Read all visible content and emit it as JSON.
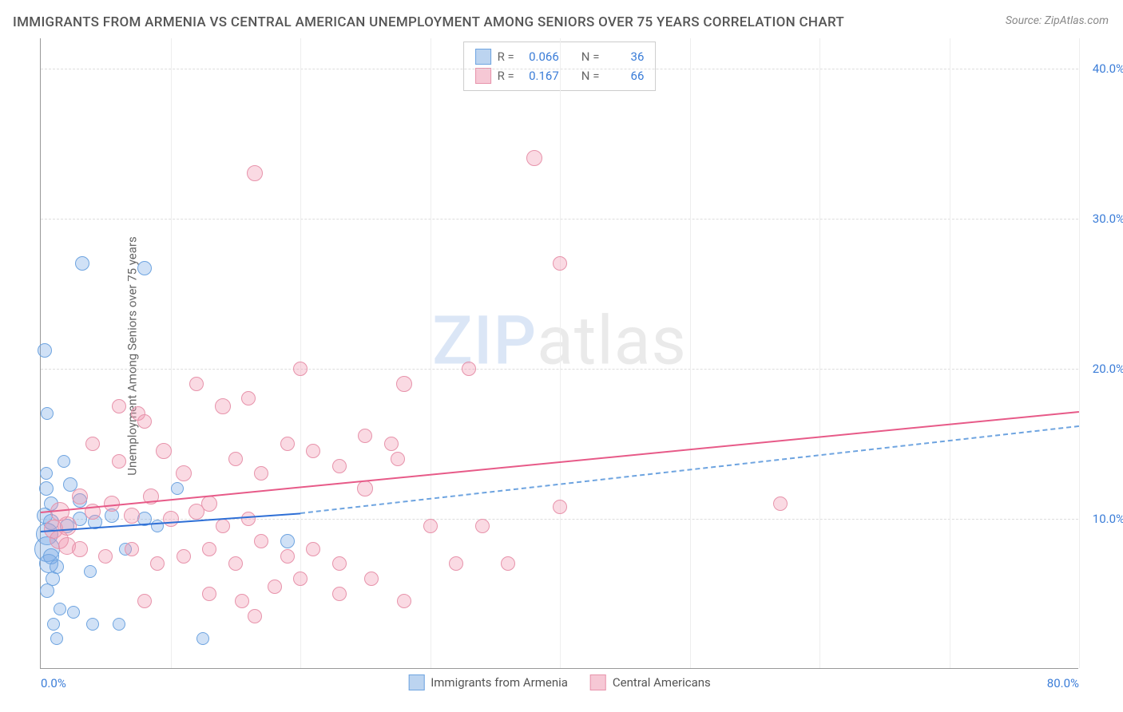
{
  "title": "IMMIGRANTS FROM ARMENIA VS CENTRAL AMERICAN UNEMPLOYMENT AMONG SENIORS OVER 75 YEARS CORRELATION CHART",
  "source": "Source: ZipAtlas.com",
  "ylabel": "Unemployment Among Seniors over 75 years",
  "watermark_a": "ZIP",
  "watermark_b": "atlas",
  "chart": {
    "type": "scatter",
    "xlim": [
      0,
      80
    ],
    "ylim": [
      0,
      42
    ],
    "xticks": [
      {
        "v": 0,
        "label": "0.0%"
      },
      {
        "v": 80,
        "label": "80.0%"
      }
    ],
    "xgrid": [
      10,
      20,
      30,
      40,
      50,
      60,
      70,
      80
    ],
    "yticks": [
      {
        "v": 10,
        "label": "10.0%"
      },
      {
        "v": 20,
        "label": "20.0%"
      },
      {
        "v": 30,
        "label": "30.0%"
      },
      {
        "v": 40,
        "label": "40.0%"
      }
    ],
    "background_color": "#ffffff",
    "grid_color_h": "#dddddd",
    "grid_color_v": "#eeeeee",
    "axis_color": "#999999",
    "tick_font_color": "#3b7dd8",
    "tick_fontsize": 15,
    "title_fontsize": 17,
    "title_color": "#555555",
    "label_fontsize": 15
  },
  "series": [
    {
      "name": "Immigrants from Armenia",
      "fill": "rgba(120,170,230,0.35)",
      "stroke": "#6ea4e0",
      "swatch_fill": "#bcd4f0",
      "swatch_stroke": "#6ea4e0",
      "R": "0.066",
      "N": "36",
      "trend": {
        "x1": 0,
        "y1": 9.2,
        "x2": 20,
        "y2": 10.4,
        "color": "#2e6fd6",
        "style": "solid"
      },
      "trend_ext": {
        "x1": 20,
        "y1": 10.4,
        "x2": 80,
        "y2": 16.2,
        "color": "#6ea4e0",
        "style": "dashed"
      },
      "points": [
        {
          "x": 0.3,
          "y": 21.2,
          "r": 9
        },
        {
          "x": 0.5,
          "y": 17.0,
          "r": 8
        },
        {
          "x": 0.4,
          "y": 13.0,
          "r": 8
        },
        {
          "x": 3.2,
          "y": 27.0,
          "r": 9
        },
        {
          "x": 8.0,
          "y": 26.7,
          "r": 9
        },
        {
          "x": 0.8,
          "y": 11.0,
          "r": 9
        },
        {
          "x": 0.8,
          "y": 9.8,
          "r": 10
        },
        {
          "x": 0.5,
          "y": 9.0,
          "r": 14
        },
        {
          "x": 0.5,
          "y": 8.0,
          "r": 16
        },
        {
          "x": 0.6,
          "y": 7.0,
          "r": 12
        },
        {
          "x": 0.8,
          "y": 7.5,
          "r": 10
        },
        {
          "x": 1.2,
          "y": 6.8,
          "r": 9
        },
        {
          "x": 0.9,
          "y": 6.0,
          "r": 9
        },
        {
          "x": 0.5,
          "y": 5.2,
          "r": 9
        },
        {
          "x": 1.5,
          "y": 4.0,
          "r": 8
        },
        {
          "x": 2.5,
          "y": 3.8,
          "r": 8
        },
        {
          "x": 3.8,
          "y": 6.5,
          "r": 8
        },
        {
          "x": 1.0,
          "y": 3.0,
          "r": 8
        },
        {
          "x": 4.0,
          "y": 3.0,
          "r": 8
        },
        {
          "x": 6.0,
          "y": 3.0,
          "r": 8
        },
        {
          "x": 1.2,
          "y": 2.0,
          "r": 8
        },
        {
          "x": 12.5,
          "y": 2.0,
          "r": 8
        },
        {
          "x": 2.0,
          "y": 9.5,
          "r": 9
        },
        {
          "x": 3.0,
          "y": 10.0,
          "r": 9
        },
        {
          "x": 4.2,
          "y": 9.8,
          "r": 9
        },
        {
          "x": 5.5,
          "y": 10.2,
          "r": 9
        },
        {
          "x": 6.5,
          "y": 8.0,
          "r": 8
        },
        {
          "x": 8.0,
          "y": 10.0,
          "r": 9
        },
        {
          "x": 9.0,
          "y": 9.5,
          "r": 8
        },
        {
          "x": 10.5,
          "y": 12.0,
          "r": 8
        },
        {
          "x": 2.3,
          "y": 12.3,
          "r": 9
        },
        {
          "x": 3.0,
          "y": 11.2,
          "r": 9
        },
        {
          "x": 0.4,
          "y": 12.0,
          "r": 9
        },
        {
          "x": 0.3,
          "y": 10.2,
          "r": 10
        },
        {
          "x": 19.0,
          "y": 8.5,
          "r": 9
        },
        {
          "x": 1.8,
          "y": 13.8,
          "r": 8
        }
      ]
    },
    {
      "name": "Central Americans",
      "fill": "rgba(240,150,175,0.35)",
      "stroke": "#e793ab",
      "swatch_fill": "#f6c8d5",
      "swatch_stroke": "#e793ab",
      "R": "0.167",
      "N": "66",
      "trend": {
        "x1": 0,
        "y1": 10.5,
        "x2": 80,
        "y2": 17.2,
        "color": "#e75a88",
        "style": "solid"
      },
      "points": [
        {
          "x": 16.5,
          "y": 33.0,
          "r": 10
        },
        {
          "x": 38.0,
          "y": 34.0,
          "r": 10
        },
        {
          "x": 40.0,
          "y": 27.0,
          "r": 9
        },
        {
          "x": 6.0,
          "y": 17.5,
          "r": 9
        },
        {
          "x": 7.5,
          "y": 17.0,
          "r": 9
        },
        {
          "x": 20.0,
          "y": 20.0,
          "r": 9
        },
        {
          "x": 12.0,
          "y": 19.0,
          "r": 9
        },
        {
          "x": 14.0,
          "y": 17.5,
          "r": 10
        },
        {
          "x": 16.0,
          "y": 18.0,
          "r": 9
        },
        {
          "x": 4.0,
          "y": 15.0,
          "r": 9
        },
        {
          "x": 6.0,
          "y": 13.8,
          "r": 9
        },
        {
          "x": 8.0,
          "y": 16.5,
          "r": 9
        },
        {
          "x": 9.5,
          "y": 14.5,
          "r": 10
        },
        {
          "x": 11.0,
          "y": 13.0,
          "r": 10
        },
        {
          "x": 13.0,
          "y": 11.0,
          "r": 10
        },
        {
          "x": 15.0,
          "y": 14.0,
          "r": 9
        },
        {
          "x": 17.0,
          "y": 13.0,
          "r": 9
        },
        {
          "x": 19.0,
          "y": 15.0,
          "r": 9
        },
        {
          "x": 21.0,
          "y": 14.5,
          "r": 9
        },
        {
          "x": 23.0,
          "y": 13.5,
          "r": 9
        },
        {
          "x": 25.0,
          "y": 15.5,
          "r": 9
        },
        {
          "x": 27.0,
          "y": 15.0,
          "r": 9
        },
        {
          "x": 28.0,
          "y": 19.0,
          "r": 10
        },
        {
          "x": 27.5,
          "y": 14.0,
          "r": 9
        },
        {
          "x": 33.0,
          "y": 20.0,
          "r": 9
        },
        {
          "x": 3.0,
          "y": 11.5,
          "r": 10
        },
        {
          "x": 4.0,
          "y": 10.5,
          "r": 10
        },
        {
          "x": 5.5,
          "y": 11.0,
          "r": 10
        },
        {
          "x": 7.0,
          "y": 10.2,
          "r": 10
        },
        {
          "x": 8.5,
          "y": 11.5,
          "r": 10
        },
        {
          "x": 10.0,
          "y": 10.0,
          "r": 10
        },
        {
          "x": 12.0,
          "y": 10.5,
          "r": 10
        },
        {
          "x": 14.0,
          "y": 9.5,
          "r": 9
        },
        {
          "x": 16.0,
          "y": 10.0,
          "r": 9
        },
        {
          "x": 2.0,
          "y": 9.5,
          "r": 12
        },
        {
          "x": 1.5,
          "y": 10.5,
          "r": 12
        },
        {
          "x": 1.0,
          "y": 9.3,
          "r": 12
        },
        {
          "x": 1.4,
          "y": 8.6,
          "r": 12
        },
        {
          "x": 2.0,
          "y": 8.2,
          "r": 11
        },
        {
          "x": 3.0,
          "y": 8.0,
          "r": 10
        },
        {
          "x": 5.0,
          "y": 7.5,
          "r": 9
        },
        {
          "x": 7.0,
          "y": 8.0,
          "r": 9
        },
        {
          "x": 9.0,
          "y": 7.0,
          "r": 9
        },
        {
          "x": 11.0,
          "y": 7.5,
          "r": 9
        },
        {
          "x": 13.0,
          "y": 8.0,
          "r": 9
        },
        {
          "x": 15.0,
          "y": 7.0,
          "r": 9
        },
        {
          "x": 17.0,
          "y": 8.5,
          "r": 9
        },
        {
          "x": 19.0,
          "y": 7.5,
          "r": 9
        },
        {
          "x": 21.0,
          "y": 8.0,
          "r": 9
        },
        {
          "x": 23.0,
          "y": 7.0,
          "r": 9
        },
        {
          "x": 25.5,
          "y": 6.0,
          "r": 9
        },
        {
          "x": 20.0,
          "y": 6.0,
          "r": 9
        },
        {
          "x": 13.0,
          "y": 5.0,
          "r": 9
        },
        {
          "x": 15.5,
          "y": 4.5,
          "r": 9
        },
        {
          "x": 18.0,
          "y": 5.5,
          "r": 9
        },
        {
          "x": 23.0,
          "y": 5.0,
          "r": 9
        },
        {
          "x": 28.0,
          "y": 4.5,
          "r": 9
        },
        {
          "x": 30.0,
          "y": 9.5,
          "r": 9
        },
        {
          "x": 32.0,
          "y": 7.0,
          "r": 9
        },
        {
          "x": 34.0,
          "y": 9.5,
          "r": 9
        },
        {
          "x": 36.0,
          "y": 7.0,
          "r": 9
        },
        {
          "x": 40.0,
          "y": 10.8,
          "r": 9
        },
        {
          "x": 25.0,
          "y": 12.0,
          "r": 10
        },
        {
          "x": 16.5,
          "y": 3.5,
          "r": 9
        },
        {
          "x": 57.0,
          "y": 11.0,
          "r": 9
        },
        {
          "x": 8.0,
          "y": 4.5,
          "r": 9
        }
      ]
    }
  ],
  "legend_labels": {
    "R": "R =",
    "N": "N ="
  }
}
